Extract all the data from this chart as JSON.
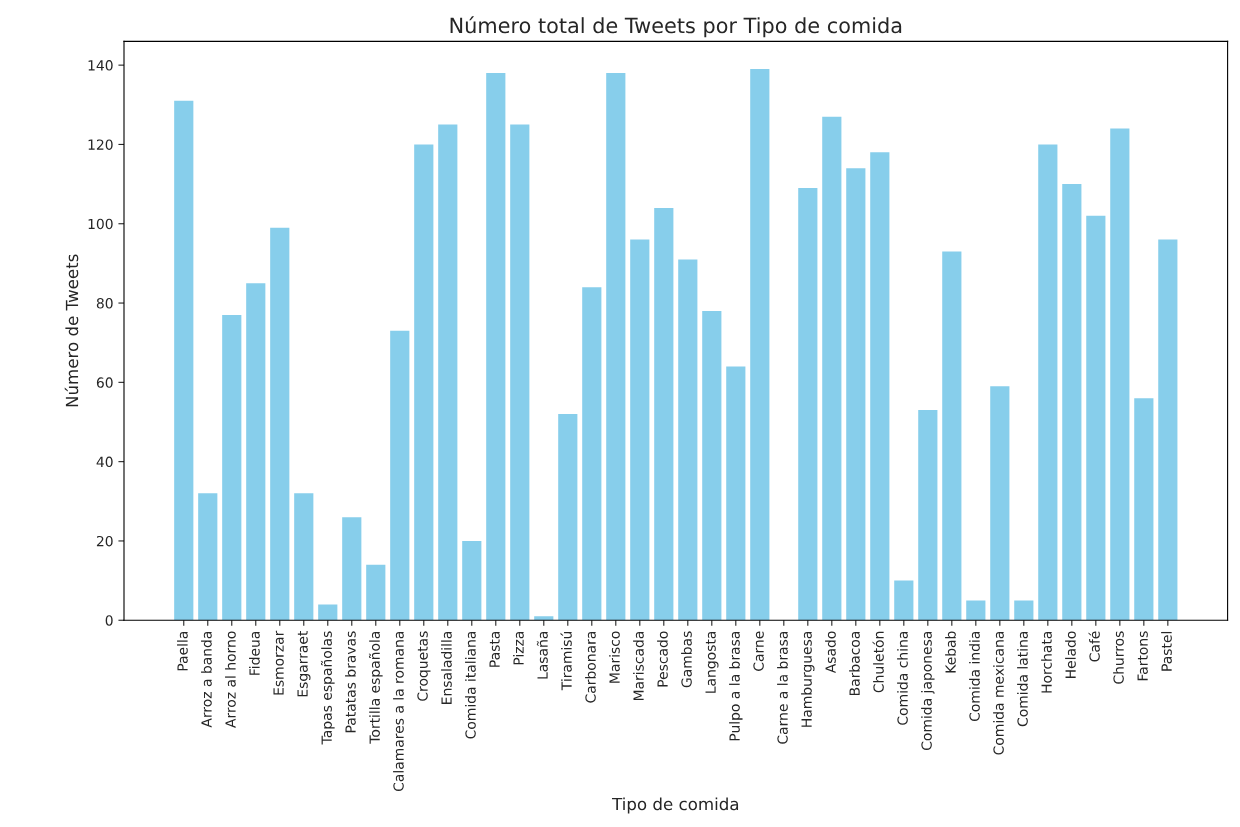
{
  "chart_data": {
    "type": "bar",
    "title": "Número total de Tweets por Tipo de comida",
    "xlabel": "Tipo de comida",
    "ylabel": "Número de Tweets",
    "categories": [
      "Paella",
      "Arroz a banda",
      "Arroz al horno",
      "Fideua",
      "Esmorzar",
      "Esgarraet",
      "Tapas españolas",
      "Patatas bravas",
      "Tortilla española",
      "Calamares a la romana",
      "Croquetas",
      "Ensaladilla",
      "Comida italiana",
      "Pasta",
      "Pizza",
      "Lasaña",
      "Tiramisú",
      "Carbonara",
      "Marisco",
      "Mariscada",
      "Pescado",
      "Gambas",
      "Langosta",
      "Pulpo a la brasa",
      "Carne",
      "Carne a la brasa",
      "Hamburguesa",
      "Asado",
      "Barbacoa",
      "Chuletón",
      "Comida china",
      "Comida japonesa",
      "Kebab",
      "Comida india",
      "Comida mexicana",
      "Comida latina",
      "Horchata",
      "Helado",
      "Café",
      "Churros",
      "Fartons",
      "Pastel"
    ],
    "values": [
      131,
      32,
      77,
      85,
      99,
      32,
      4,
      26,
      14,
      73,
      120,
      125,
      20,
      138,
      125,
      1,
      52,
      84,
      138,
      96,
      104,
      91,
      78,
      64,
      139,
      0,
      109,
      127,
      114,
      118,
      10,
      53,
      93,
      5,
      59,
      5,
      120,
      110,
      102,
      124,
      56,
      96
    ],
    "color": "#87ceeb",
    "ylim": [
      0,
      146
    ],
    "yticks": [
      0,
      20,
      40,
      60,
      80,
      100,
      120,
      140
    ],
    "grid": false
  }
}
